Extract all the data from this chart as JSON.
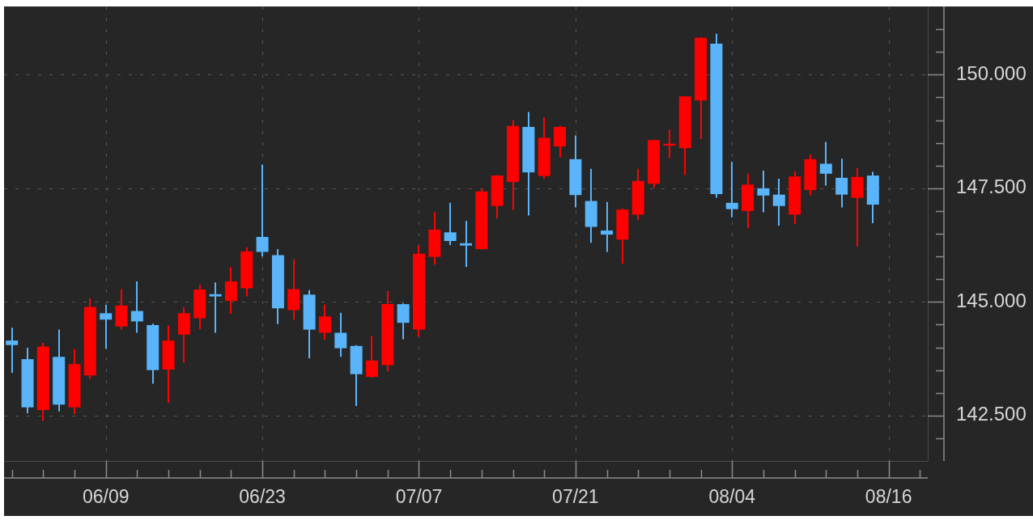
{
  "chart_data": {
    "type": "candlestick",
    "categories": [
      null,
      null,
      null,
      null,
      null,
      null,
      "06/09",
      null,
      null,
      null,
      null,
      null,
      null,
      null,
      null,
      null,
      "06/23",
      null,
      null,
      null,
      null,
      null,
      null,
      null,
      null,
      null,
      "07/07",
      null,
      null,
      null,
      null,
      null,
      null,
      null,
      null,
      null,
      "07/21",
      null,
      null,
      null,
      null,
      null,
      null,
      null,
      null,
      null,
      "08/04",
      null,
      null,
      null,
      null,
      null,
      null,
      null,
      null,
      null,
      "08/16",
      null,
      null
    ],
    "ohlc": [
      [
        144.15,
        144.43,
        143.44,
        144.05
      ],
      [
        143.74,
        143.99,
        142.55,
        142.68
      ],
      [
        142.62,
        144.1,
        142.38,
        144.02
      ],
      [
        143.79,
        144.39,
        142.59,
        142.74
      ],
      [
        142.68,
        143.96,
        142.53,
        143.63
      ],
      [
        143.38,
        145.08,
        143.3,
        144.89
      ],
      [
        144.75,
        144.94,
        143.97,
        144.61
      ],
      [
        144.46,
        145.28,
        144.39,
        144.92
      ],
      [
        144.8,
        145.45,
        144.32,
        144.57
      ],
      [
        144.49,
        144.52,
        143.2,
        143.5
      ],
      [
        143.51,
        144.48,
        142.78,
        144.15
      ],
      [
        144.28,
        144.88,
        143.66,
        144.75
      ],
      [
        144.64,
        145.38,
        144.4,
        145.27
      ],
      [
        145.17,
        145.43,
        144.32,
        145.12
      ],
      [
        145.02,
        145.76,
        144.74,
        145.45
      ],
      [
        145.3,
        146.2,
        145.12,
        146.11
      ],
      [
        146.43,
        148.02,
        146.0,
        146.1
      ],
      [
        146.03,
        146.16,
        144.51,
        144.86
      ],
      [
        144.82,
        145.94,
        144.61,
        145.28
      ],
      [
        145.16,
        145.26,
        143.76,
        144.39
      ],
      [
        144.32,
        144.94,
        144.17,
        144.68
      ],
      [
        144.32,
        144.76,
        143.79,
        143.98
      ],
      [
        144.03,
        144.05,
        142.71,
        143.41
      ],
      [
        143.35,
        144.25,
        143.33,
        143.71
      ],
      [
        143.61,
        145.24,
        143.47,
        144.95
      ],
      [
        144.95,
        144.97,
        144.18,
        144.54
      ],
      [
        144.39,
        146.24,
        144.24,
        146.06
      ],
      [
        145.99,
        146.97,
        145.82,
        146.59
      ],
      [
        146.53,
        147.18,
        146.25,
        146.34
      ],
      [
        146.29,
        146.78,
        145.77,
        146.24
      ],
      [
        146.16,
        147.5,
        146.15,
        147.43
      ],
      [
        147.11,
        147.79,
        146.84,
        147.78
      ],
      [
        147.64,
        149.0,
        147.02,
        148.87
      ],
      [
        148.85,
        149.18,
        146.9,
        147.85
      ],
      [
        147.77,
        149.06,
        147.71,
        148.61
      ],
      [
        148.42,
        148.87,
        148.18,
        148.85
      ],
      [
        148.14,
        148.66,
        147.08,
        147.35
      ],
      [
        147.22,
        147.93,
        146.3,
        146.65
      ],
      [
        146.57,
        147.2,
        146.1,
        146.48
      ],
      [
        146.37,
        147.05,
        145.84,
        147.03
      ],
      [
        146.92,
        147.93,
        146.8,
        147.66
      ],
      [
        147.6,
        148.57,
        147.51,
        148.56
      ],
      [
        148.44,
        148.79,
        148.16,
        148.48
      ],
      [
        148.38,
        149.53,
        147.79,
        149.52
      ],
      [
        149.43,
        150.83,
        148.58,
        150.81
      ],
      [
        150.68,
        150.9,
        147.29,
        147.37
      ],
      [
        147.18,
        148.08,
        146.86,
        147.04
      ],
      [
        147.0,
        147.82,
        146.62,
        147.58
      ],
      [
        147.5,
        147.89,
        146.97,
        147.34
      ],
      [
        147.36,
        147.71,
        146.68,
        147.11
      ],
      [
        146.92,
        147.87,
        146.71,
        147.76
      ],
      [
        147.46,
        148.24,
        147.34,
        148.14
      ],
      [
        148.04,
        148.52,
        147.56,
        147.82
      ],
      [
        147.73,
        148.15,
        147.08,
        147.36
      ],
      [
        147.29,
        147.94,
        146.22,
        147.75
      ],
      [
        147.78,
        147.86,
        146.73,
        147.14
      ],
      null,
      null,
      null
    ],
    "colors": [
      "#5ab4fa",
      "#5ab4fa",
      "#ff0000",
      "#5ab4fa",
      "#ff0000",
      "#ff0000",
      "#5ab4fa",
      "#ff0000",
      "#5ab4fa",
      "#5ab4fa",
      "#ff0000",
      "#ff0000",
      "#ff0000",
      "#5ab4fa",
      "#ff0000",
      "#ff0000",
      "#5ab4fa",
      "#5ab4fa",
      "#ff0000",
      "#5ab4fa",
      "#ff0000",
      "#5ab4fa",
      "#5ab4fa",
      "#ff0000",
      "#ff0000",
      "#5ab4fa",
      "#ff0000",
      "#ff0000",
      "#5ab4fa",
      "#5ab4fa",
      "#ff0000",
      "#ff0000",
      "#ff0000",
      "#5ab4fa",
      "#ff0000",
      "#ff0000",
      "#5ab4fa",
      "#5ab4fa",
      "#5ab4fa",
      "#ff0000",
      "#ff0000",
      "#ff0000",
      "#ff0000",
      "#ff0000",
      "#ff0000",
      "#5ab4fa",
      "#5ab4fa",
      "#ff0000",
      "#5ab4fa",
      "#5ab4fa",
      "#ff0000",
      "#ff0000",
      "#5ab4fa",
      "#5ab4fa",
      "#ff0000",
      "#5ab4fa",
      null,
      null,
      null
    ],
    "ylim": [
      141.5,
      151.5
    ],
    "yticks": [
      {
        "value": 142,
        "label": null
      },
      {
        "value": 142.5,
        "label": "142.500"
      },
      {
        "value": 143,
        "label": null
      },
      {
        "value": 143.5,
        "label": null
      },
      {
        "value": 144,
        "label": null
      },
      {
        "value": 144.5,
        "label": null
      },
      {
        "value": 145,
        "label": "145.000"
      },
      {
        "value": 145.5,
        "label": null
      },
      {
        "value": 146,
        "label": null
      },
      {
        "value": 146.5,
        "label": null
      },
      {
        "value": 147,
        "label": null
      },
      {
        "value": 147.5,
        "label": "147.500"
      },
      {
        "value": 148,
        "label": null
      },
      {
        "value": 148.5,
        "label": null
      },
      {
        "value": 149,
        "label": null
      },
      {
        "value": 149.5,
        "label": null
      },
      {
        "value": 150,
        "label": "150.000"
      },
      {
        "value": 150.5,
        "label": null
      },
      {
        "value": 151,
        "label": null
      }
    ],
    "grid": true
  }
}
